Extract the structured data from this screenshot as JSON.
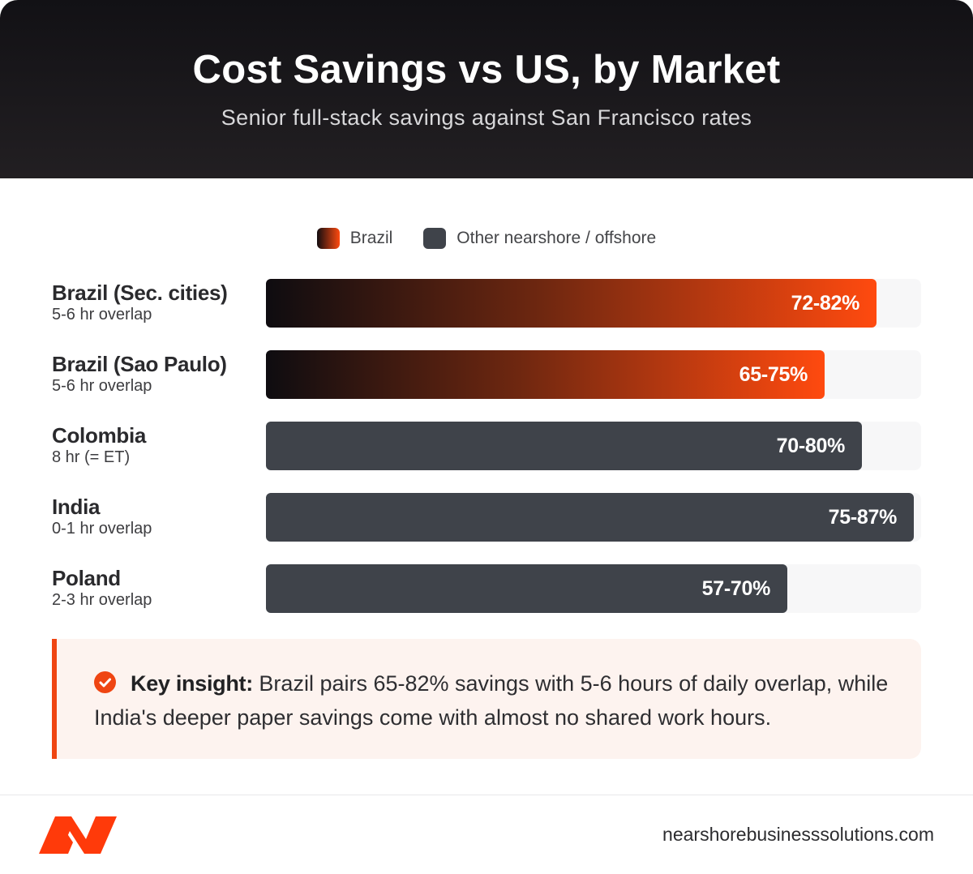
{
  "header": {
    "title": "Cost Savings vs US, by Market",
    "subtitle": "Senior full-stack savings against San Francisco rates"
  },
  "legend": {
    "brazil_label": "Brazil",
    "other_label": "Other nearshore / offshore"
  },
  "colors": {
    "accent": "#ff4a0f",
    "other_bar": "#3f434a",
    "header_bg": "#121115"
  },
  "chart_data": {
    "type": "bar",
    "orientation": "horizontal",
    "title": "Cost Savings vs US, by Market",
    "subtitle": "Senior full-stack savings against San Francisco rates",
    "xlim": [
      0,
      88
    ],
    "legend_placement": "top-center",
    "grid": false,
    "rows": [
      {
        "country": "Brazil (Sec. cities)",
        "overlap": "5-6 hr overlap",
        "group": "brazil",
        "label": "72-82%",
        "low": 72,
        "high": 82
      },
      {
        "country": "Brazil (Sao Paulo)",
        "overlap": "5-6 hr overlap",
        "group": "brazil",
        "label": "65-75%",
        "low": 65,
        "high": 75
      },
      {
        "country": "Colombia",
        "overlap": "8 hr (= ET)",
        "group": "other",
        "label": "70-80%",
        "low": 70,
        "high": 80
      },
      {
        "country": "India",
        "overlap": "0-1 hr overlap",
        "group": "other",
        "label": "75-87%",
        "low": 75,
        "high": 87
      },
      {
        "country": "Poland",
        "overlap": "2-3 hr overlap",
        "group": "other",
        "label": "57-70%",
        "low": 57,
        "high": 70
      }
    ]
  },
  "insight": {
    "icon": "check-circle-icon",
    "key": "Key insight:",
    "text": " Brazil pairs 65-82% savings with 5-6 hours of daily overlap, while India's deeper paper savings come with almost no shared work hours."
  },
  "footer": {
    "logo": "nearshore-logo-icon",
    "site": "nearshorebusinesssolutions.com"
  }
}
